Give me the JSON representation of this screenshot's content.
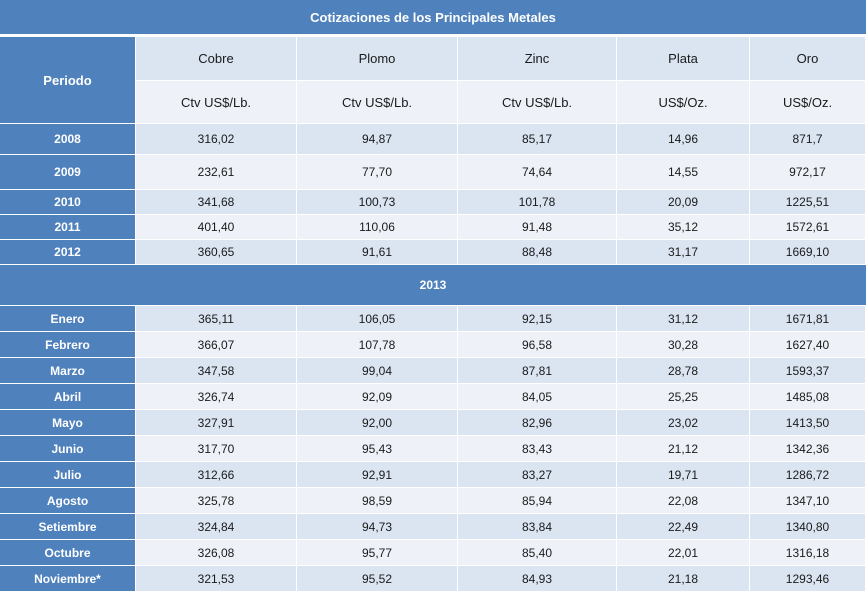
{
  "title": "Cotizaciones de los Principales Metales",
  "header": {
    "period": "Periodo",
    "metals": [
      "Cobre",
      "Plomo",
      "Zinc",
      "Plata",
      "Oro"
    ],
    "units": [
      "Ctv US$/Lb.",
      "Ctv US$/Lb.",
      "Ctv US$/Lb.",
      "US$/Oz.",
      "US$/Oz."
    ]
  },
  "annual_rows": [
    {
      "period": "2008",
      "values": [
        "316,02",
        "94,87",
        "85,17",
        "14,96",
        "871,7"
      ]
    },
    {
      "period": "2009",
      "values": [
        "232,61",
        "77,70",
        "74,64",
        "14,55",
        "972,17"
      ]
    },
    {
      "period": "2010",
      "values": [
        "341,68",
        "100,73",
        "101,78",
        "20,09",
        "1225,51"
      ]
    },
    {
      "period": "2011",
      "values": [
        "401,40",
        "110,06",
        "91,48",
        "35,12",
        "1572,61"
      ]
    },
    {
      "period": "2012",
      "values": [
        "360,65",
        "91,61",
        "88,48",
        "31,17",
        "1669,10"
      ]
    }
  ],
  "section_label": "2013",
  "monthly_rows": [
    {
      "period": "Enero",
      "values": [
        "365,11",
        "106,05",
        "92,15",
        "31,12",
        "1671,81"
      ]
    },
    {
      "period": "Febrero",
      "values": [
        "366,07",
        "107,78",
        "96,58",
        "30,28",
        "1627,40"
      ]
    },
    {
      "period": "Marzo",
      "values": [
        "347,58",
        "99,04",
        "87,81",
        "28,78",
        "1593,37"
      ]
    },
    {
      "period": "Abril",
      "values": [
        "326,74",
        "92,09",
        "84,05",
        "25,25",
        "1485,08"
      ]
    },
    {
      "period": "Mayo",
      "values": [
        "327,91",
        "92,00",
        "82,96",
        "23,02",
        "1413,50"
      ]
    },
    {
      "period": "Junio",
      "values": [
        "317,70",
        "95,43",
        "83,43",
        "21,12",
        "1342,36"
      ]
    },
    {
      "period": "Julio",
      "values": [
        "312,66",
        "92,91",
        "83,27",
        "19,71",
        "1286,72"
      ]
    },
    {
      "period": "Agosto",
      "values": [
        "325,78",
        "98,59",
        "85,94",
        "22,08",
        "1347,10"
      ]
    },
    {
      "period": "Setiembre",
      "values": [
        "324,84",
        "94,73",
        "83,84",
        "22,49",
        "1340,80"
      ]
    },
    {
      "period": "Octubre",
      "values": [
        "326,08",
        "95,77",
        "85,40",
        "22,01",
        "1316,18"
      ]
    },
    {
      "period": "Noviembre*",
      "values": [
        "321,53",
        "95,52",
        "84,93",
        "21,18",
        "1293,46"
      ]
    }
  ]
}
